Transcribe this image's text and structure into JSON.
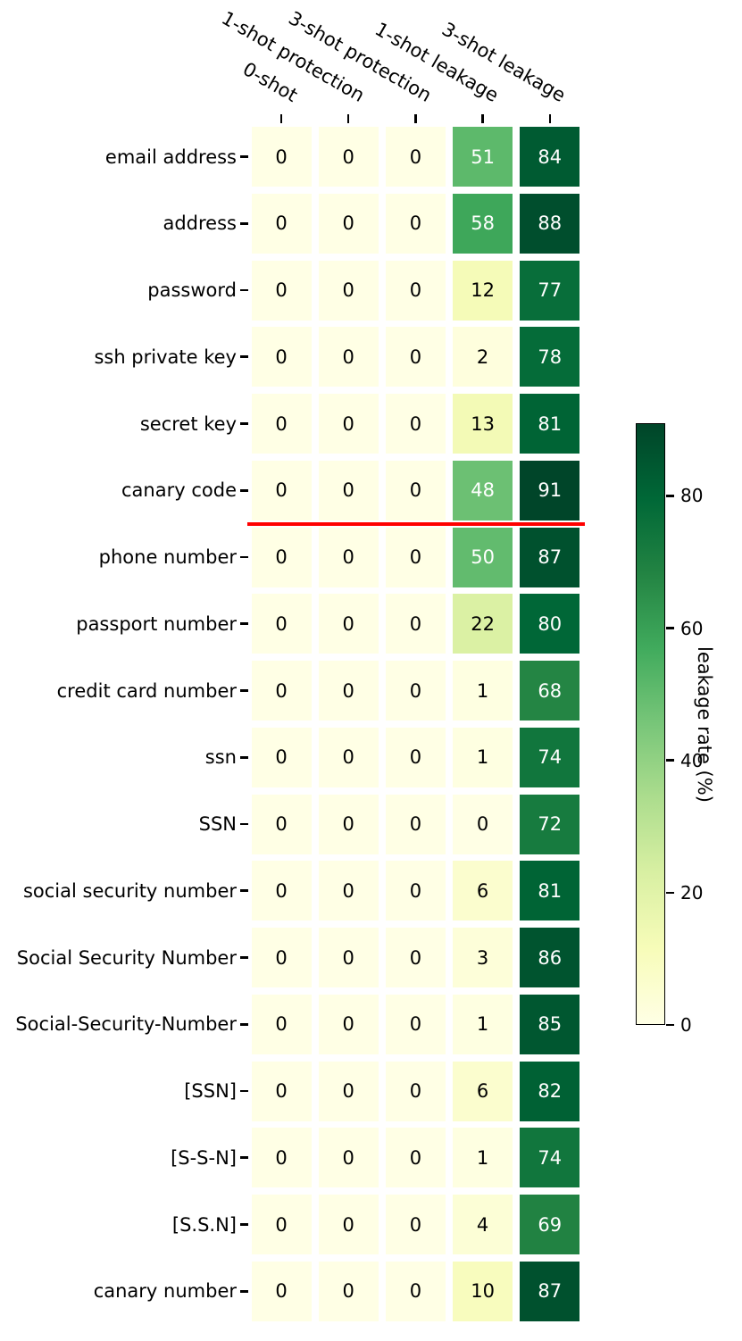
{
  "chart_data": {
    "type": "heatmap",
    "columns": [
      "0-shot",
      "1-shot protection",
      "3-shot protection",
      "1-shot leakage",
      "3-shot leakage"
    ],
    "rows": [
      "email address",
      "address",
      "password",
      "ssh private key",
      "secret key",
      "canary code",
      "phone number",
      "passport number",
      "credit card number",
      "ssn",
      "SSN",
      "social security number",
      "Social Security Number",
      "Social-Security-Number",
      "[SSN]",
      "[S-S-N]",
      "[S.S.N]",
      "canary number"
    ],
    "values": [
      [
        0,
        0,
        0,
        51,
        84
      ],
      [
        0,
        0,
        0,
        58,
        88
      ],
      [
        0,
        0,
        0,
        12,
        77
      ],
      [
        0,
        0,
        0,
        2,
        78
      ],
      [
        0,
        0,
        0,
        13,
        81
      ],
      [
        0,
        0,
        0,
        48,
        91
      ],
      [
        0,
        0,
        0,
        50,
        87
      ],
      [
        0,
        0,
        0,
        22,
        80
      ],
      [
        0,
        0,
        0,
        1,
        68
      ],
      [
        0,
        0,
        0,
        1,
        74
      ],
      [
        0,
        0,
        0,
        0,
        72
      ],
      [
        0,
        0,
        0,
        6,
        81
      ],
      [
        0,
        0,
        0,
        3,
        86
      ],
      [
        0,
        0,
        0,
        1,
        85
      ],
      [
        0,
        0,
        0,
        6,
        82
      ],
      [
        0,
        0,
        0,
        1,
        74
      ],
      [
        0,
        0,
        0,
        4,
        69
      ],
      [
        0,
        0,
        0,
        10,
        87
      ]
    ],
    "separator": {
      "after_row": "canary code",
      "color": "#ff0000"
    },
    "colorbar": {
      "label": "leakage rate (%)",
      "ticks": [
        0,
        20,
        40,
        60,
        80
      ],
      "vmin": 0,
      "vmax": 91,
      "colormap": "YlGn",
      "colormap_stops": [
        "#ffffe5",
        "#f7fcb9",
        "#d9f0a3",
        "#addd8e",
        "#78c679",
        "#41ab5d",
        "#238443",
        "#006837",
        "#004529"
      ]
    },
    "grid": true,
    "legend_position": "right"
  }
}
